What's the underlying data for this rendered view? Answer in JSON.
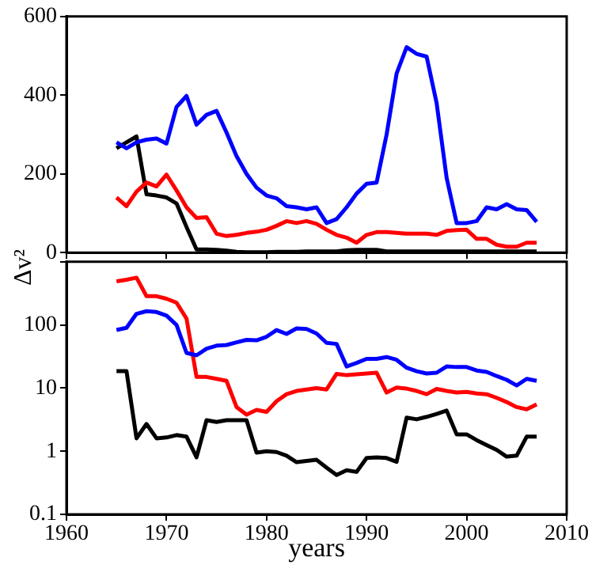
{
  "chart_data": [
    {
      "type": "line",
      "ylabel": "Δv²",
      "x": [
        1965,
        1966,
        1967,
        1968,
        1969,
        1970,
        1971,
        1972,
        1973,
        1974,
        1975,
        1976,
        1977,
        1978,
        1979,
        1980,
        1981,
        1982,
        1983,
        1984,
        1985,
        1986,
        1987,
        1988,
        1989,
        1990,
        1991,
        1992,
        1993,
        1994,
        1995,
        1996,
        1997,
        1998,
        1999,
        2000,
        2001,
        2002,
        2003,
        2004,
        2005,
        2006,
        2007
      ],
      "series": [
        {
          "color": "#0000ff",
          "values": [
            280,
            265,
            280,
            287,
            290,
            277,
            370,
            398,
            325,
            350,
            360,
            305,
            245,
            200,
            165,
            145,
            138,
            118,
            115,
            110,
            115,
            75,
            85,
            115,
            150,
            175,
            178,
            300,
            455,
            522,
            505,
            498,
            380,
            190,
            75,
            75,
            80,
            115,
            110,
            123,
            110,
            108,
            78
          ]
        },
        {
          "color": "#ff0000",
          "values": [
            140,
            118,
            155,
            178,
            168,
            198,
            158,
            115,
            88,
            90,
            48,
            42,
            45,
            50,
            53,
            58,
            68,
            80,
            75,
            80,
            73,
            58,
            45,
            38,
            25,
            45,
            52,
            52,
            50,
            48,
            48,
            48,
            45,
            55,
            57,
            58,
            35,
            35,
            20,
            15,
            15,
            25,
            25
          ]
        },
        {
          "color": "#000000",
          "values": [
            265,
            280,
            295,
            148,
            145,
            140,
            125,
            65,
            8,
            8,
            7,
            5,
            2,
            1,
            1,
            1,
            2,
            2,
            2,
            3,
            3,
            3,
            3,
            6,
            7,
            7,
            7,
            3,
            3,
            3,
            3,
            3,
            3,
            3,
            3,
            3,
            3,
            3,
            3,
            3,
            3,
            3,
            3
          ]
        }
      ],
      "xlim": [
        1960,
        2010
      ],
      "xticks": [
        1960,
        1970,
        1980,
        1990,
        2000,
        2010
      ],
      "ylim": [
        0,
        600
      ],
      "yticks": [
        0,
        200,
        400,
        600
      ],
      "tick_labels": "y",
      "grid": false,
      "legend": false,
      "line_style": "solid",
      "marker": "none"
    },
    {
      "type": "line",
      "xlabel": "years",
      "x": [
        1965,
        1966,
        1967,
        1968,
        1969,
        1970,
        1971,
        1972,
        1973,
        1974,
        1975,
        1976,
        1977,
        1978,
        1979,
        1980,
        1981,
        1982,
        1983,
        1984,
        1985,
        1986,
        1987,
        1988,
        1989,
        1990,
        1991,
        1992,
        1993,
        1994,
        1995,
        1996,
        1997,
        1998,
        1999,
        2000,
        2001,
        2002,
        2003,
        2004,
        2005,
        2006,
        2007
      ],
      "series": [
        {
          "color": "#0000ff",
          "values": [
            83,
            90,
            150,
            165,
            160,
            140,
            100,
            36,
            33,
            42,
            47,
            48,
            53,
            58,
            57,
            65,
            83,
            72,
            88,
            86,
            73,
            52,
            50,
            22,
            25,
            29,
            29,
            31,
            28,
            21,
            18.5,
            17,
            17.5,
            22,
            21.5,
            21.5,
            19,
            18,
            15.5,
            13.5,
            11,
            14,
            13
          ]
        },
        {
          "color": "#ff0000",
          "values": [
            490,
            520,
            560,
            285,
            285,
            260,
            225,
            126,
            15,
            15,
            14,
            13,
            5,
            3.8,
            4.5,
            4.2,
            6.2,
            8,
            9,
            9.5,
            10,
            9.5,
            16.8,
            16,
            16.5,
            17,
            17.5,
            8.5,
            10.2,
            9.8,
            9,
            8,
            9.7,
            9,
            8.5,
            8.7,
            8.2,
            8,
            7,
            6,
            5,
            4.6,
            5.5
          ]
        },
        {
          "color": "#000000",
          "values": [
            18.5,
            18.5,
            1.6,
            2.7,
            1.6,
            1.65,
            1.8,
            1.7,
            0.8,
            3.1,
            2.9,
            3.1,
            3.1,
            3.1,
            0.95,
            1.0,
            0.97,
            0.85,
            0.67,
            0.7,
            0.73,
            0.55,
            0.42,
            0.5,
            0.47,
            0.78,
            0.8,
            0.78,
            0.68,
            3.4,
            3.2,
            3.5,
            3.9,
            4.4,
            1.85,
            1.85,
            1.5,
            1.25,
            1.05,
            0.82,
            0.85,
            1.7,
            1.7
          ]
        }
      ],
      "xlim": [
        1960,
        2010
      ],
      "xticks": [
        1960,
        1970,
        1980,
        1990,
        2000,
        2010
      ],
      "ylim": [
        0.1,
        1000
      ],
      "yticks": [
        0.1,
        1,
        10,
        100,
        {
          "value": 1000,
          "label": null
        }
      ],
      "log": "y",
      "grid": false,
      "legend": false,
      "line_style": "solid",
      "marker": "none"
    }
  ]
}
